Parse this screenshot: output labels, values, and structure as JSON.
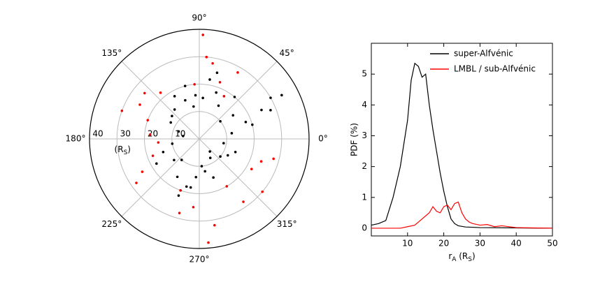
{
  "chart_data": [
    {
      "type": "polar-scatter",
      "rlim": [
        0,
        40
      ],
      "rticks": [
        10,
        20,
        30,
        40
      ],
      "r_label": [
        "(R",
        "S",
        ")"
      ],
      "angle_ticks": [
        {
          "value": 0,
          "label": "0°"
        },
        {
          "value": 45,
          "label": "45°"
        },
        {
          "value": 90,
          "label": "90°"
        },
        {
          "value": 135,
          "label": "135°"
        },
        {
          "value": 180,
          "label": "180°"
        },
        {
          "value": 225,
          "label": "225°"
        },
        {
          "value": 270,
          "label": "270°"
        },
        {
          "value": 315,
          "label": "315°"
        }
      ],
      "grid": true,
      "series": [
        {
          "color": "#000000",
          "theta": [
            10,
            20,
            25,
            30,
            35,
            40,
            50,
            60,
            70,
            80,
            95,
            100,
            110,
            120,
            130,
            140,
            150,
            160,
            170,
            190,
            200,
            210,
            220,
            230,
            240,
            250,
            260,
            265,
            275,
            280,
            290,
            300,
            310,
            320,
            330,
            340,
            350,
            15,
            22,
            28,
            75,
            85,
            105,
            250,
            255
          ],
          "r": [
            12,
            18,
            25,
            30,
            15,
            10,
            20,
            14,
            18,
            22,
            16,
            12,
            15,
            18,
            14,
            13,
            12,
            8,
            6,
            10,
            14,
            18,
            12,
            10,
            16,
            20,
            18,
            14,
            10,
            12,
            15,
            8,
            6,
            10,
            12,
            14,
            9,
            20,
            28,
            34,
            25,
            15,
            20,
            22,
            18
          ]
        },
        {
          "color": "#ff0000",
          "theta": [
            85,
            88,
            80,
            70,
            60,
            130,
            140,
            150,
            160,
            175,
            185,
            200,
            210,
            215,
            250,
            255,
            265,
            275,
            280,
            300,
            305,
            320,
            330,
            340,
            345,
            60,
            95,
            160
          ],
          "r": [
            30,
            38,
            28,
            22,
            18,
            22,
            26,
            25,
            20,
            18,
            15,
            18,
            24,
            28,
            20,
            28,
            25,
            38,
            32,
            20,
            28,
            30,
            22,
            24,
            28,
            28,
            20,
            30
          ]
        }
      ]
    },
    {
      "type": "line",
      "xlabel": [
        "r",
        "A",
        " (R",
        "S",
        ")"
      ],
      "ylabel": "PDF (%)",
      "xlim": [
        0,
        50
      ],
      "xticks": [
        10,
        20,
        30,
        40,
        50
      ],
      "ylim": [
        -0.25,
        6
      ],
      "yticks": [
        0,
        1,
        2,
        3,
        4,
        5
      ],
      "legend": "upper right",
      "series": [
        {
          "name": "super-Alfvénic",
          "color": "#000000",
          "x": [
            0,
            2,
            4,
            6,
            8,
            10,
            11,
            12,
            13,
            14,
            15,
            16,
            17,
            18,
            19,
            20,
            21,
            22,
            23,
            24,
            26,
            30,
            40,
            50
          ],
          "values": [
            0.1,
            0.15,
            0.25,
            1,
            2,
            3.5,
            4.8,
            5.35,
            5.25,
            4.9,
            5.0,
            4.0,
            3.2,
            2.5,
            1.8,
            1.2,
            0.7,
            0.3,
            0.15,
            0.08,
            0.04,
            0.02,
            0.01,
            0
          ]
        },
        {
          "name": "LMBL / sub-Alfvénic",
          "color": "#ff0000",
          "x": [
            0,
            8,
            10,
            12,
            14,
            16,
            17,
            18,
            19,
            20,
            21,
            22,
            23,
            24,
            25,
            26,
            27,
            28,
            30,
            32,
            34,
            36,
            40,
            50
          ],
          "values": [
            0,
            0,
            0.05,
            0.1,
            0.3,
            0.5,
            0.7,
            0.55,
            0.5,
            0.7,
            0.75,
            0.6,
            0.8,
            0.85,
            0.5,
            0.3,
            0.2,
            0.15,
            0.1,
            0.12,
            0.05,
            0.08,
            0.02,
            0
          ]
        }
      ]
    }
  ]
}
